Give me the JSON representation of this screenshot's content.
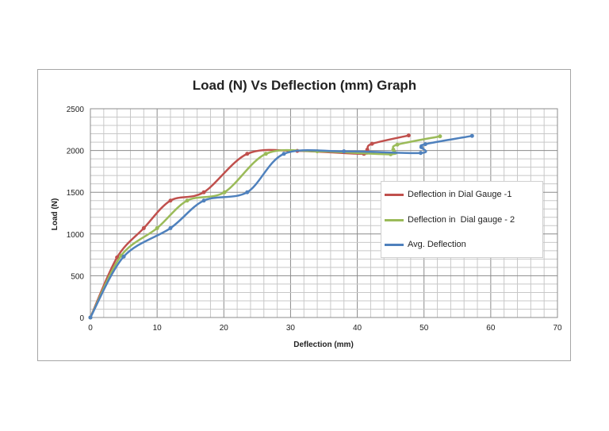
{
  "chart_data": {
    "type": "line",
    "title": "Load (N) Vs Deflection (mm) Graph",
    "xlabel": "Deflection (mm)",
    "ylabel": "Load (N)",
    "xlim": [
      0,
      70
    ],
    "ylim": [
      0,
      2500
    ],
    "xticks": [
      0,
      10,
      20,
      30,
      40,
      50,
      60,
      70
    ],
    "yticks": [
      0,
      500,
      1000,
      1500,
      2000,
      2500
    ],
    "grid": true,
    "minor_grid": {
      "x_step": 2,
      "y_step": 100
    },
    "legend_position": "right",
    "series": [
      {
        "name": "Deflection in Dial Gauge -1",
        "color": "#c0504d",
        "points": [
          [
            0,
            0
          ],
          [
            4,
            720
          ],
          [
            8,
            1070
          ],
          [
            12,
            1400
          ],
          [
            17,
            1500
          ],
          [
            23.5,
            1960
          ],
          [
            31,
            1995
          ],
          [
            41,
            1960
          ],
          [
            41.5,
            2010
          ],
          [
            42.2,
            2080
          ],
          [
            47.7,
            2180
          ]
        ]
      },
      {
        "name": "Deflection in  Dial gauge - 2",
        "color": "#9bbb59",
        "points": [
          [
            0,
            0
          ],
          [
            4.6,
            740
          ],
          [
            10,
            1070
          ],
          [
            14.5,
            1400
          ],
          [
            20.1,
            1500
          ],
          [
            26.3,
            1960
          ],
          [
            34,
            1990
          ],
          [
            45,
            1955
          ],
          [
            45.4,
            2010
          ],
          [
            46,
            2070
          ],
          [
            52.4,
            2170
          ]
        ]
      },
      {
        "name": "Avg. Deflection",
        "color": "#4f81bd",
        "points": [
          [
            0,
            0
          ],
          [
            5,
            730
          ],
          [
            12,
            1070
          ],
          [
            17,
            1400
          ],
          [
            23.5,
            1500
          ],
          [
            29,
            1960
          ],
          [
            38,
            1990
          ],
          [
            49.5,
            1970
          ],
          [
            49.6,
            2040
          ],
          [
            50.2,
            2076
          ],
          [
            57.2,
            2175
          ]
        ]
      }
    ]
  }
}
